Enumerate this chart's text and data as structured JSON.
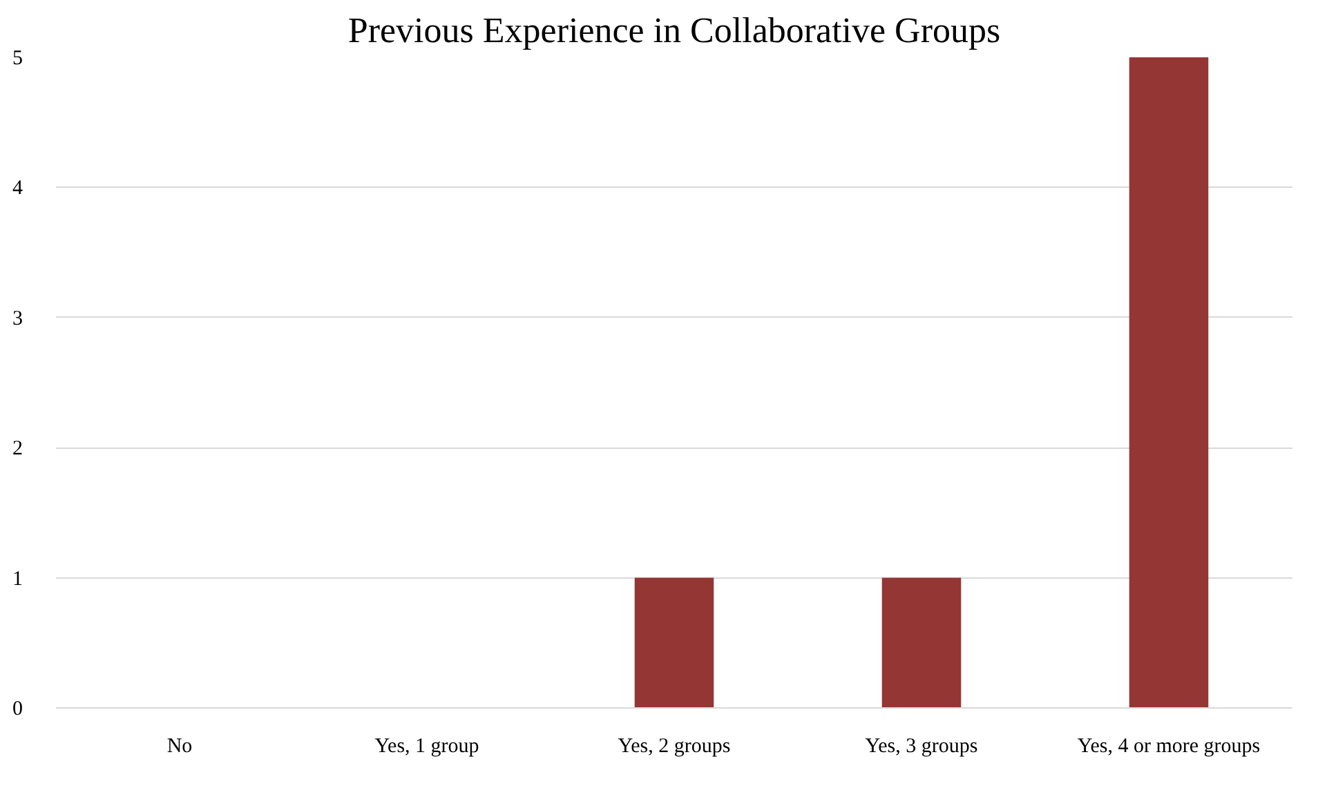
{
  "chart_data": {
    "type": "bar",
    "title": "Previous Experience in Collaborative Groups",
    "categories": [
      "No",
      "Yes, 1 group",
      "Yes, 2 groups",
      "Yes, 3 groups",
      "Yes, 4 or more groups"
    ],
    "values": [
      0,
      0,
      1,
      1,
      5
    ],
    "color": "#943634",
    "ylim": [
      0,
      5
    ],
    "yticks": [
      0,
      1,
      2,
      3,
      4,
      5
    ],
    "grid": "y"
  }
}
